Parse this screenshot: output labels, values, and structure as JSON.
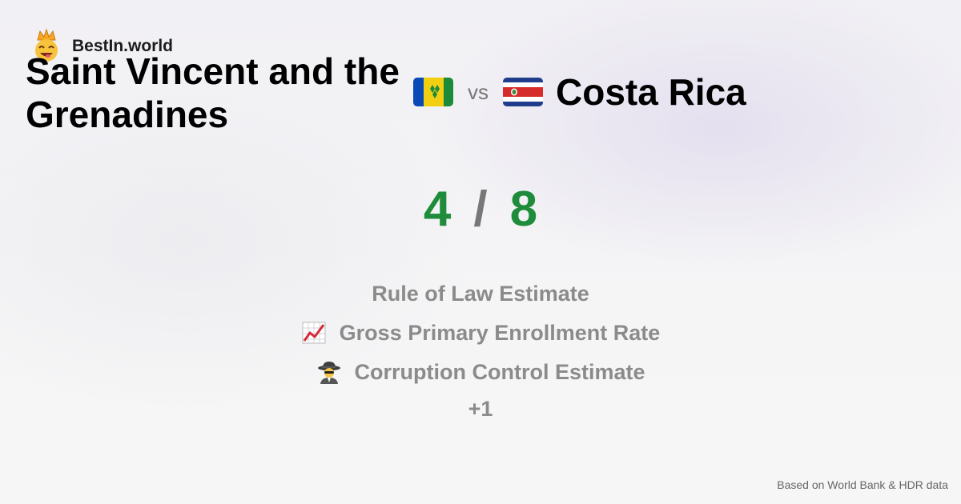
{
  "brand": {
    "name": "BestIn.world",
    "logo_icon": "crowned-face-icon"
  },
  "comparison": {
    "left_country": "Saint Vincent and the Grenadines",
    "left_flag": "saint-vincent-flag-icon",
    "vs_label": "vs",
    "right_country": "Costa Rica",
    "right_flag": "costa-rica-flag-icon"
  },
  "score": {
    "left": "4",
    "separator": "/",
    "right": "8",
    "color": "#1e8c3a"
  },
  "criteria": [
    {
      "label": "Rule of Law Estimate",
      "icon": ""
    },
    {
      "label": "Gross Primary Enrollment Rate",
      "icon": "chart-increasing-icon"
    },
    {
      "label": "Corruption Control Estimate",
      "icon": "detective-icon"
    }
  ],
  "more_label": "+1",
  "footer": {
    "source": "Based on World Bank & HDR data"
  }
}
